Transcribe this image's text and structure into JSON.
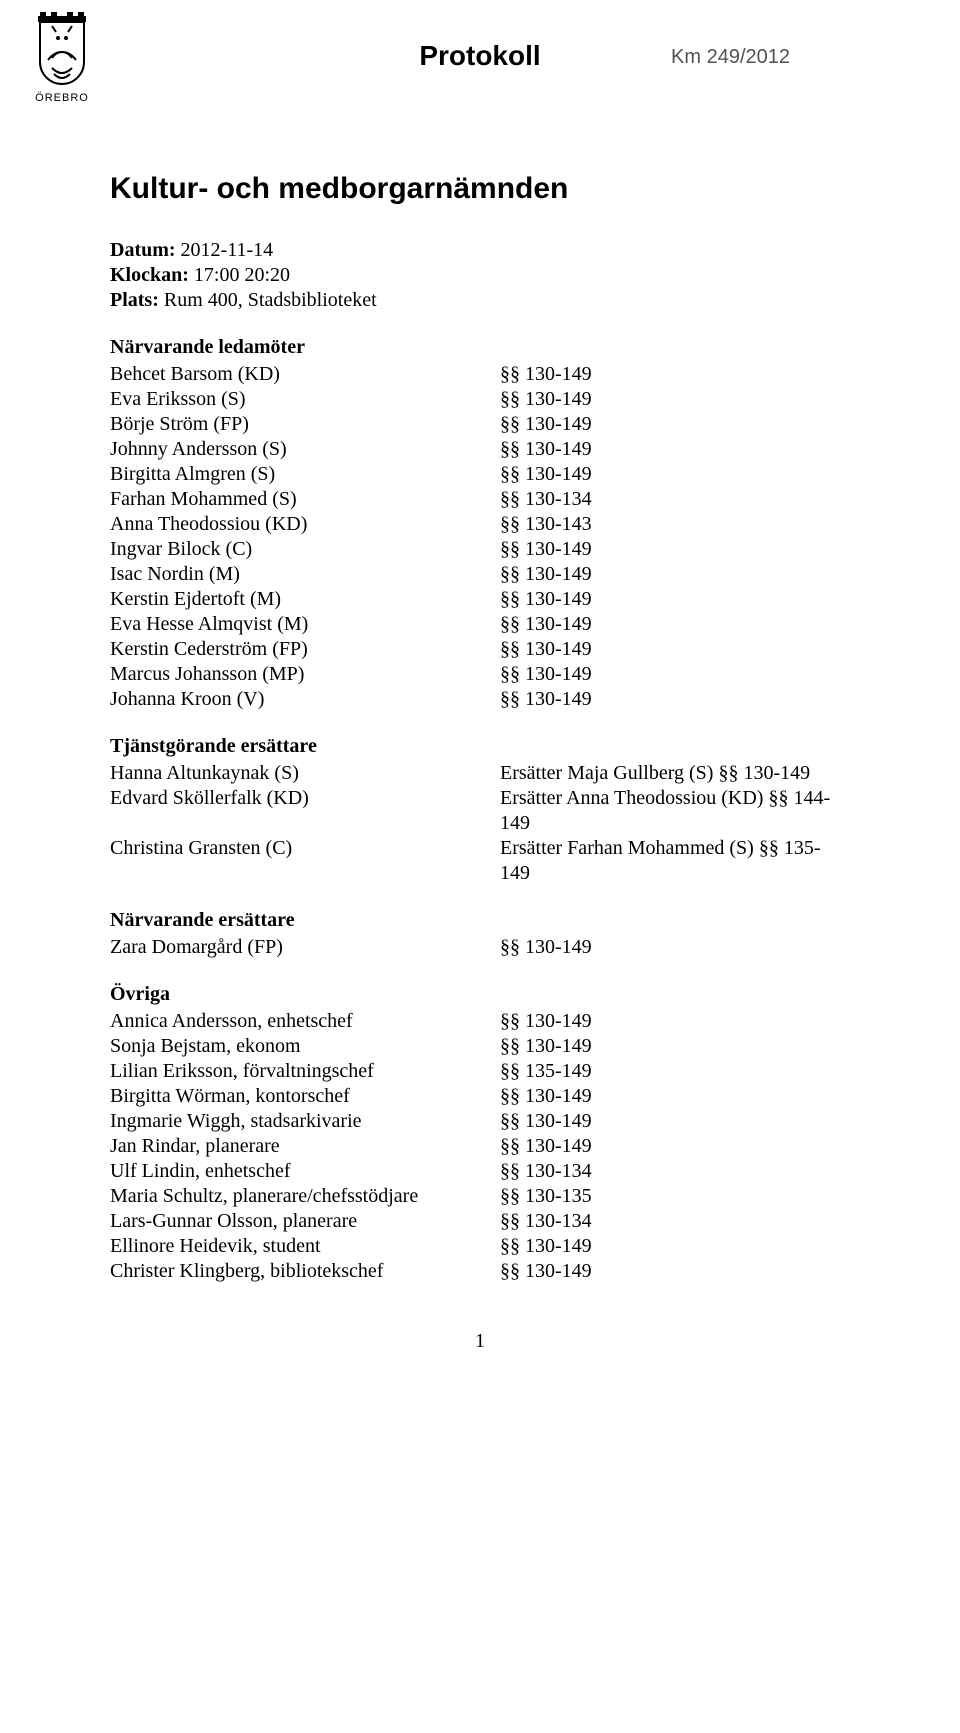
{
  "header": {
    "doc_type": "Protokoll",
    "doc_ref": "Km 249/2012",
    "crest_label": "ÖREBRO"
  },
  "title": "Kultur- och medborgarnämnden",
  "meta": {
    "datum_label": "Datum:",
    "datum_value": "2012-11-14",
    "klockan_label": "Klockan:",
    "klockan_value": "17:00 20:20",
    "plats_label": "Plats:",
    "plats_value": "Rum 400, Stadsbiblioteket"
  },
  "sections": {
    "narvarande_ledamoter": "Närvarande ledamöter",
    "tjanstgorande_ersattare": "Tjänstgörande ersättare",
    "narvarande_ersattare": "Närvarande ersättare",
    "ovriga": "Övriga"
  },
  "ledamoter": [
    {
      "name": "Behcet Barsom (KD)",
      "range": "§§ 130-149"
    },
    {
      "name": "Eva Eriksson (S)",
      "range": "§§ 130-149"
    },
    {
      "name": "Börje Ström (FP)",
      "range": "§§ 130-149"
    },
    {
      "name": "Johnny Andersson (S)",
      "range": "§§ 130-149"
    },
    {
      "name": "Birgitta Almgren (S)",
      "range": "§§ 130-149"
    },
    {
      "name": "Farhan Mohammed (S)",
      "range": "§§ 130-134"
    },
    {
      "name": "Anna Theodossiou (KD)",
      "range": "§§ 130-143"
    },
    {
      "name": "Ingvar Bilock (C)",
      "range": "§§ 130-149"
    },
    {
      "name": "Isac Nordin (M)",
      "range": "§§ 130-149"
    },
    {
      "name": "Kerstin Ejdertoft (M)",
      "range": "§§ 130-149"
    },
    {
      "name": "Eva Hesse Almqvist (M)",
      "range": "§§ 130-149"
    },
    {
      "name": "Kerstin Cederström (FP)",
      "range": "§§ 130-149"
    },
    {
      "name": "Marcus Johansson (MP)",
      "range": "§§ 130-149"
    },
    {
      "name": "Johanna Kroon (V)",
      "range": "§§ 130-149"
    }
  ],
  "tjanstgorande": [
    {
      "name": "Hanna Altunkaynak (S)",
      "note": "Ersätter Maja Gullberg (S) §§ 130-149"
    },
    {
      "name": "Edvard Sköllerfalk (KD)",
      "note": "Ersätter Anna Theodossiou (KD) §§ 144-149"
    },
    {
      "name": "Christina Gransten (C)",
      "note": "Ersätter Farhan Mohammed (S) §§ 135-149"
    }
  ],
  "narvarande_ers": [
    {
      "name": "Zara Domargård (FP)",
      "range": "§§ 130-149"
    }
  ],
  "ovriga": [
    {
      "name": "Annica Andersson, enhetschef",
      "range": "§§ 130-149"
    },
    {
      "name": "Sonja Bejstam, ekonom",
      "range": "§§ 130-149"
    },
    {
      "name": "Lilian Eriksson, förvaltningschef",
      "range": "§§ 135-149"
    },
    {
      "name": "Birgitta Wörman, kontorschef",
      "range": "§§ 130-149"
    },
    {
      "name": "Ingmarie Wiggh, stadsarkivarie",
      "range": "§§ 130-149"
    },
    {
      "name": "Jan Rindar, planerare",
      "range": "§§ 130-149"
    },
    {
      "name": "Ulf Lindin, enhetschef",
      "range": "§§ 130-134"
    },
    {
      "name": "Maria Schultz, planerare/chefsstödjare",
      "range": "§§ 130-135"
    },
    {
      "name": "Lars-Gunnar Olsson, planerare",
      "range": "§§ 130-134"
    },
    {
      "name": "Ellinore Heidevik, student",
      "range": "§§ 130-149"
    },
    {
      "name": "Christer Klingberg, bibliotekschef",
      "range": "§§ 130-149"
    }
  ],
  "page_number": "1"
}
